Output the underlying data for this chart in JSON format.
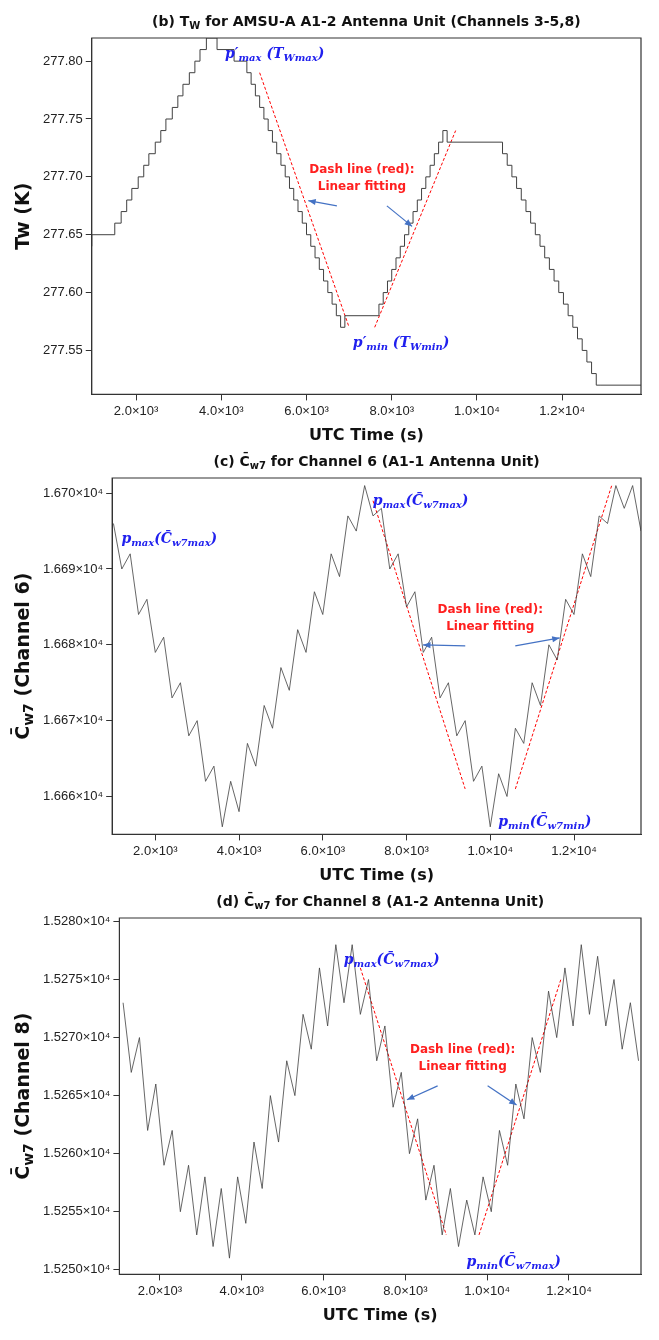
{
  "chart_data": [
    {
      "type": "step",
      "title": "(b) T$_{W}$ for AMSU-A A1-2 Antenna Unit (Channels 3-5,8)",
      "xlabel": "UTC Time (s)",
      "ylabel": "Tw (K)",
      "marker": "none",
      "xlim": [
        960,
        13850
      ],
      "xticks": [
        {
          "value": 2000,
          "label": "2.0×10³"
        },
        {
          "value": 4000,
          "label": "4.0×10³"
        },
        {
          "value": 6000,
          "label": "6.0×10³"
        },
        {
          "value": 8000,
          "label": "8.0×10³"
        },
        {
          "value": 10000,
          "label": "1.0×10⁴"
        },
        {
          "value": 12000,
          "label": "1.2×10⁴"
        }
      ],
      "ylim": [
        277.512,
        277.82
      ],
      "yticks": [
        277.55,
        {
          "value": 277.6,
          "label": "277.60"
        },
        277.65,
        {
          "value": 277.7,
          "label": "277.70"
        },
        277.75,
        {
          "value": 277.8,
          "label": "277.80"
        }
      ],
      "series": [
        {
          "color": "#404040",
          "x": [
            960,
            1500,
            1650,
            1780,
            1900,
            2050,
            2180,
            2300,
            2450,
            2580,
            2700,
            2850,
            2980,
            3100,
            3250,
            3380,
            3500,
            3650,
            3900,
            4300,
            4600,
            4700,
            4800,
            4900,
            5000,
            5100,
            5200,
            5300,
            5400,
            5500,
            5600,
            5700,
            5800,
            5900,
            6000,
            6100,
            6200,
            6300,
            6400,
            6500,
            6600,
            6700,
            6800,
            6900,
            7700,
            7800,
            7900,
            8000,
            8100,
            8200,
            8300,
            8400,
            8500,
            8600,
            8700,
            8800,
            8900,
            9000,
            9100,
            9200,
            9300,
            10600,
            10710,
            10820,
            10930,
            11040,
            11150,
            11260,
            11370,
            11480,
            11590,
            11700,
            11810,
            11920,
            12030,
            12140,
            12250,
            12360,
            12470,
            12580,
            12690,
            12800,
            12910,
            13850
          ],
          "values": [
            277.64,
            277.65,
            277.66,
            277.67,
            277.68,
            277.69,
            277.7,
            277.71,
            277.72,
            277.73,
            277.74,
            277.75,
            277.76,
            277.77,
            277.78,
            277.79,
            277.8,
            277.81,
            277.82,
            277.81,
            277.8,
            277.79,
            277.78,
            277.77,
            277.76,
            277.75,
            277.74,
            277.73,
            277.72,
            277.71,
            277.7,
            277.69,
            277.68,
            277.67,
            277.66,
            277.65,
            277.64,
            277.63,
            277.62,
            277.61,
            277.6,
            277.59,
            277.58,
            277.57,
            277.58,
            277.59,
            277.6,
            277.61,
            277.62,
            277.63,
            277.64,
            277.65,
            277.66,
            277.67,
            277.68,
            277.69,
            277.7,
            277.71,
            277.72,
            277.73,
            277.74,
            277.73,
            277.72,
            277.71,
            277.7,
            277.69,
            277.68,
            277.67,
            277.66,
            277.65,
            277.64,
            277.63,
            277.62,
            277.61,
            277.6,
            277.59,
            277.58,
            277.57,
            277.56,
            277.55,
            277.54,
            277.53,
            277.52,
            277.52
          ]
        },
        {
          "type": "line",
          "line_style": "dashed",
          "color": "#ff0000",
          "x": [
            4900,
            7000
          ],
          "values": [
            277.79,
            277.57
          ]
        },
        {
          "type": "line",
          "line_style": "dashed",
          "color": "#ff0000",
          "x": [
            7600,
            9500
          ],
          "values": [
            277.57,
            277.74
          ]
        }
      ],
      "annotations": [
        {
          "text": "p′$_{max}$ (T$_{Wmax}$)",
          "x": 3900,
          "y": 277.82
        },
        {
          "text": "p′$_{min}$ (T$_{Wmin}$)",
          "x": 6900,
          "y": 277.57
        },
        {
          "text": "Dash line (red):\nLinear fitting",
          "x": 5950,
          "y": 277.68
        }
      ]
    },
    {
      "type": "line",
      "title": "(c) C̄$_{w7}$ for Channel 6 (A1-1 Antenna Unit)",
      "xlabel": "UTC Time (s)",
      "ylabel": "C̄$_{w7}$ (Channel 6)",
      "marker": "none",
      "xlim": [
        970,
        13600
      ],
      "xticks": [
        {
          "value": 2000,
          "label": "2.0×10³"
        },
        {
          "value": 4000,
          "label": "4.0×10³"
        },
        {
          "value": 6000,
          "label": "6.0×10³"
        },
        {
          "value": 8000,
          "label": "8.0×10³"
        },
        {
          "value": 10000,
          "label": "1.0×10⁴"
        },
        {
          "value": 12000,
          "label": "1.2×10⁴"
        }
      ],
      "ylim": [
        16655,
        16702
      ],
      "yticks": [
        {
          "value": 16660,
          "label": "1.666×10⁴"
        },
        {
          "value": 16670,
          "label": "1.667×10⁴"
        },
        {
          "value": 16680,
          "label": "1.668×10⁴"
        },
        {
          "value": 16690,
          "label": "1.669×10⁴"
        },
        {
          "value": 16700,
          "label": "1.670×10⁴"
        }
      ],
      "series": [
        {
          "color": "#404040",
          "x": [
            1000,
            1200,
            1400,
            1600,
            1800,
            2000,
            2200,
            2400,
            2600,
            2800,
            3000,
            3200,
            3400,
            3600,
            3800,
            4000,
            4200,
            4400,
            4600,
            4800,
            5000,
            5200,
            5400,
            5600,
            5800,
            6000,
            6200,
            6400,
            6600,
            6800,
            7000,
            7200,
            7400,
            7600,
            7800,
            8000,
            8200,
            8400,
            8600,
            8800,
            9000,
            9200,
            9400,
            9600,
            9800,
            10000,
            10200,
            10400,
            10600,
            10800,
            11000,
            11200,
            11400,
            11600,
            11800,
            12000,
            12200,
            12400,
            12600,
            12800,
            13000,
            13200,
            13400,
            13600
          ],
          "values": [
            16696,
            16690,
            16692,
            16684,
            16686,
            16679,
            16681,
            16673,
            16675,
            16668,
            16670,
            16662,
            16664,
            16656,
            16662,
            16658,
            16667,
            16664,
            16672,
            16669,
            16677,
            16674,
            16682,
            16679,
            16687,
            16684,
            16692,
            16689,
            16697,
            16695,
            16701,
            16697,
            16698,
            16690,
            16692,
            16685,
            16687,
            16679,
            16681,
            16673,
            16675,
            16668,
            16670,
            16662,
            16664,
            16656,
            16663,
            16660,
            16669,
            16667,
            16675,
            16672,
            16680,
            16678,
            16686,
            16684,
            16692,
            16689,
            16697,
            16696,
            16701,
            16698,
            16701,
            16695
          ]
        },
        {
          "type": "line",
          "line_style": "dashed",
          "color": "#ff0000",
          "x": [
            7200,
            9400
          ],
          "values": [
            16699,
            16661
          ]
        },
        {
          "type": "line",
          "line_style": "dashed",
          "color": "#ff0000",
          "x": [
            10600,
            12900
          ],
          "values": [
            16661,
            16701
          ]
        }
      ],
      "annotations": [
        {
          "text": "p$_{max}$(C̄$_{w7max}$)",
          "x": 1000,
          "y": 16696
        },
        {
          "text": "p$_{max}$(C̄$_{w7max}$)",
          "x": 7000,
          "y": 16701
        },
        {
          "text": "p$_{min}$(C̄$_{w7min}$)",
          "x": 10000,
          "y": 16656
        },
        {
          "text": "Dash line (red):\nLinear fitting",
          "x": 8300,
          "y": 16680
        }
      ]
    },
    {
      "type": "line",
      "title": "(d) C̄$_{w7}$ for Channel 8 (A1-2 Antenna Unit)",
      "xlabel": "UTC Time (s)",
      "ylabel": "C̄$_{w7}$ (Channel 8)",
      "marker": "none",
      "xlim": [
        1010,
        13760
      ],
      "xticks": [
        {
          "value": 2000,
          "label": "2.0×10³"
        },
        {
          "value": 4000,
          "label": "4.0×10³"
        },
        {
          "value": 6000,
          "label": "6.0×10³"
        },
        {
          "value": 8000,
          "label": "8.0×10³"
        },
        {
          "value": 10000,
          "label": "1.0×10⁴"
        },
        {
          "value": 12000,
          "label": "1.2×10⁴"
        }
      ],
      "ylim": [
        15249.6,
        15280.3
      ],
      "yticks": [
        {
          "value": 15250,
          "label": "1.5250×10⁴"
        },
        {
          "value": 15255,
          "label": "1.5255×10⁴"
        },
        {
          "value": 15260,
          "label": "1.5260×10⁴"
        },
        {
          "value": 15265,
          "label": "1.5265×10⁴"
        },
        {
          "value": 15270,
          "label": "1.5270×10⁴"
        },
        {
          "value": 15275,
          "label": "1.5275×10⁴"
        },
        {
          "value": 15280,
          "label": "1.5280×10⁴"
        }
      ],
      "series": [
        {
          "color": "#404040",
          "x": [
            1100,
            1300,
            1500,
            1700,
            1900,
            2100,
            2300,
            2500,
            2700,
            2900,
            3100,
            3300,
            3500,
            3700,
            3900,
            4100,
            4300,
            4500,
            4700,
            4900,
            5100,
            5300,
            5500,
            5700,
            5900,
            6100,
            6300,
            6500,
            6700,
            6900,
            7100,
            7300,
            7500,
            7700,
            7900,
            8100,
            8300,
            8500,
            8700,
            8900,
            9100,
            9300,
            9500,
            9700,
            9900,
            10100,
            10300,
            10500,
            10700,
            10900,
            11100,
            11300,
            11500,
            11700,
            11900,
            12100,
            12300,
            12500,
            12700,
            12900,
            13100,
            13300,
            13500,
            13700
          ],
          "values": [
            15273,
            15267,
            15270,
            15262,
            15266,
            15259,
            15262,
            15255,
            15259,
            15253,
            15258,
            15252,
            15257,
            15251,
            15258,
            15254,
            15261,
            15257,
            15265,
            15261,
            15268,
            15265,
            15272,
            15269,
            15276,
            15271,
            15278,
            15273,
            15278,
            15272,
            15275,
            15268,
            15271,
            15264,
            15267,
            15260,
            15263,
            15256,
            15259,
            15253,
            15257,
            15252,
            15256,
            15253,
            15258,
            15255,
            15262,
            15259,
            15266,
            15263,
            15270,
            15267,
            15274,
            15270,
            15276,
            15271,
            15278,
            15272,
            15277,
            15271,
            15275,
            15269,
            15273,
            15268
          ]
        },
        {
          "type": "line",
          "line_style": "dashed",
          "color": "#ff0000",
          "x": [
            6900,
            9000
          ],
          "values": [
            15276,
            15253
          ]
        },
        {
          "type": "line",
          "line_style": "dashed",
          "color": "#ff0000",
          "x": [
            9800,
            11800
          ],
          "values": [
            15253,
            15275
          ]
        }
      ],
      "annotations": [
        {
          "text": "p$_{max}$(C̄$_{w7max}$)",
          "x": 6300,
          "y": 15278
        },
        {
          "text": "p$_{min}$(C̄$_{w7max}$)",
          "x": 9300,
          "y": 15252
        },
        {
          "text": "Dash line (red):\nLinear fitting",
          "x": 7950,
          "y": 15264.5
        }
      ]
    }
  ]
}
